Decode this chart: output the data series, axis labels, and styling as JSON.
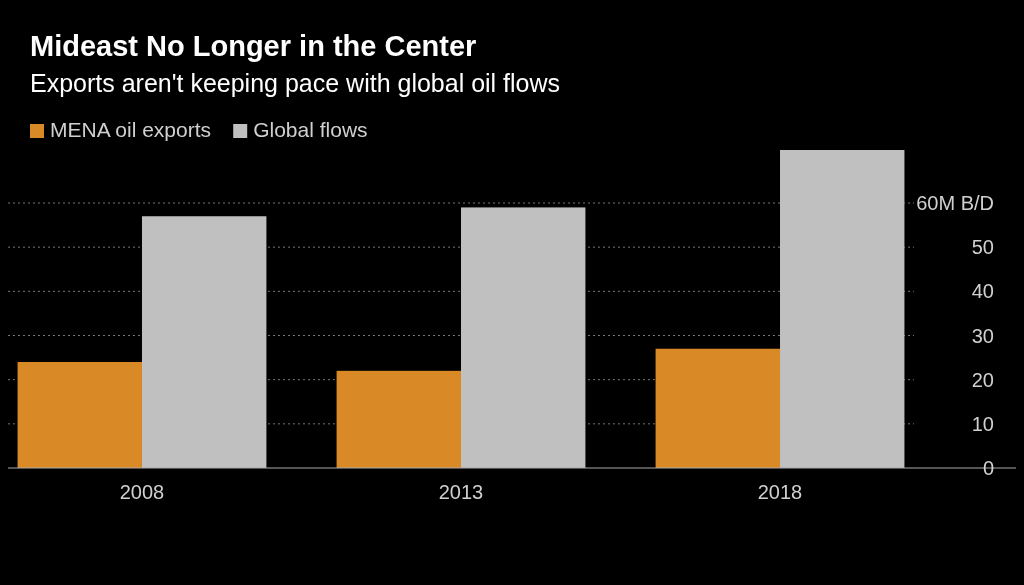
{
  "chart_data": {
    "type": "bar",
    "title": "Mideast No Longer in the Center",
    "subtitle": "Exports aren't keeping pace with global oil flows",
    "categories": [
      "2008",
      "2013",
      "2018"
    ],
    "series": [
      {
        "name": "MENA oil exports",
        "color": "#d98a27",
        "values": [
          24,
          22,
          27
        ]
      },
      {
        "name": "Global flows",
        "color": "#c0c0c0",
        "values": [
          57,
          59,
          72
        ]
      }
    ],
    "ylim": [
      0,
      72
    ],
    "yticks": [
      0,
      10,
      20,
      30,
      40,
      50,
      {
        "value": 60,
        "label": "60M B/D"
      }
    ],
    "grid": "y",
    "legend": "top left"
  }
}
